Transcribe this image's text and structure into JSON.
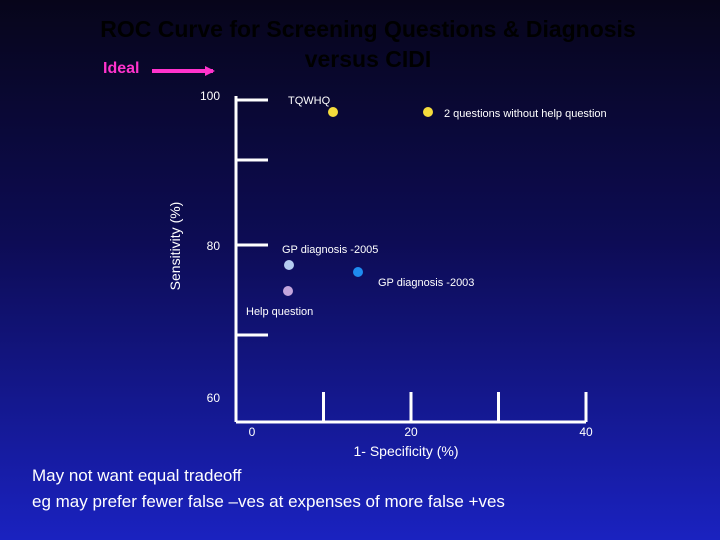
{
  "chart_data": {
    "type": "scatter",
    "title": "ROC Curve for Screening Questions & Diagnosis versus CIDI",
    "title_lines": [
      "ROC Curve for Screening Questions & Diagnosis",
      "versus CIDI"
    ],
    "xlabel": "1- Specificity (%)",
    "ylabel": "Sensitivity (%)",
    "xlim": [
      0,
      40
    ],
    "ylim": [
      60,
      100
    ],
    "x_ticks": [
      0,
      20,
      40
    ],
    "y_ticks": [
      60,
      80,
      100
    ],
    "grid": false,
    "points": [
      {
        "label": "TQWHQ",
        "x": 10,
        "y": 97.5,
        "color": "#f5dc3c"
      },
      {
        "label": "2 questions without help question",
        "x": 24,
        "y": 97.5,
        "color": "#f5dc3c"
      },
      {
        "label": "GP diagnosis -2005",
        "x": 5,
        "y": 78,
        "color": "#b4cdf0"
      },
      {
        "label": "GP diagnosis -2003",
        "x": 14.5,
        "y": 77,
        "color": "#1e8cf0"
      },
      {
        "label": "Help question",
        "x": 5,
        "y": 74.5,
        "color": "#c3a5dc"
      }
    ],
    "annotations": [
      {
        "text": "Ideal",
        "color": "#ff33cc"
      }
    ]
  },
  "captions": [
    "May not want equal tradeoff",
    "eg may prefer fewer false –ves at expenses of more false +ves"
  ]
}
